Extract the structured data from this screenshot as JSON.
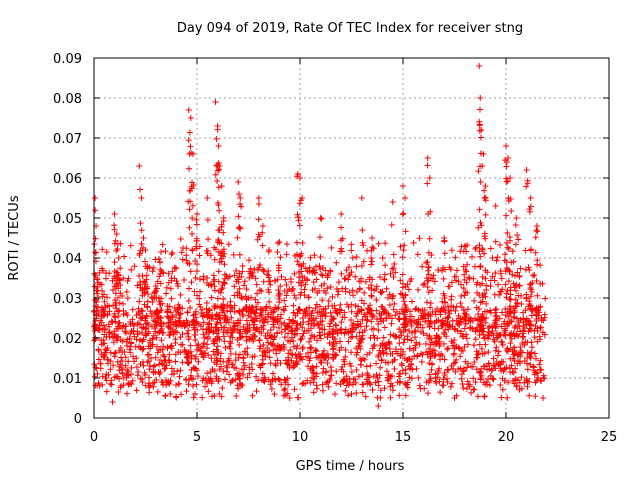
{
  "chart_data": {
    "type": "scatter",
    "title": "Day 094 of 2019, Rate Of TEC Index for receiver stng",
    "xlabel": "GPS time / hours",
    "ylabel": "ROTI / TECUs",
    "xlim": [
      0,
      25
    ],
    "ylim": [
      0,
      0.09
    ],
    "xticks": [
      0,
      5,
      10,
      15,
      20,
      25
    ],
    "xtick_labels": [
      "0",
      "5",
      "10",
      "15",
      "20",
      "25"
    ],
    "yticks": [
      0,
      0.01,
      0.02,
      0.03,
      0.04,
      0.05,
      0.06,
      0.07,
      0.08,
      0.09
    ],
    "ytick_labels": [
      "0",
      "0.01",
      "0.02",
      "0.03",
      "0.04",
      "0.05",
      "0.06",
      "0.07",
      "0.08",
      "0.09"
    ],
    "grid": true,
    "marker": "+",
    "color": "#ff0000",
    "data_range_hours": [
      0,
      21.9
    ],
    "series": [
      {
        "name": "ROTI",
        "baseline_range": [
          0.008,
          0.028
        ],
        "x": [
          0.05,
          0.1,
          0.15,
          0.2,
          1.0,
          1.1,
          1.2,
          2.2,
          2.3,
          2.4,
          2.5,
          2.6,
          3.0,
          3.2,
          4.6,
          4.7,
          4.8,
          5.0,
          5.5,
          5.9,
          6.0,
          6.05,
          6.1,
          6.2,
          6.3,
          7.0,
          7.1,
          8.0,
          8.2,
          8.5,
          9.0,
          9.9,
          10.0,
          10.1,
          11.0,
          12.0,
          13.0,
          13.5,
          13.8,
          14.5,
          15.0,
          15.1,
          16.2,
          16.3,
          17.0,
          18.0,
          18.7,
          18.75,
          18.8,
          18.9,
          19.0,
          19.5,
          20.0,
          20.1,
          20.2,
          20.5,
          21.0,
          21.2,
          21.5,
          21.8,
          0.9,
          3.7,
          9.5,
          13.9,
          17.5,
          4.9,
          12.5
        ],
        "y": [
          0.055,
          0.048,
          0.035,
          0.03,
          0.051,
          0.046,
          0.04,
          0.063,
          0.055,
          0.045,
          0.042,
          0.038,
          0.033,
          0.039,
          0.077,
          0.075,
          0.066,
          0.051,
          0.055,
          0.079,
          0.073,
          0.068,
          0.063,
          0.058,
          0.05,
          0.059,
          0.055,
          0.055,
          0.048,
          0.042,
          0.044,
          0.061,
          0.06,
          0.055,
          0.05,
          0.051,
          0.055,
          0.045,
          0.003,
          0.054,
          0.058,
          0.055,
          0.065,
          0.06,
          0.045,
          0.043,
          0.088,
          0.08,
          0.072,
          0.066,
          0.058,
          0.053,
          0.068,
          0.065,
          0.06,
          0.05,
          0.062,
          0.055,
          0.048,
          0.005,
          0.004,
          0.006,
          0.005,
          0.005,
          0.005,
          0.006,
          0.006
        ]
      }
    ]
  }
}
